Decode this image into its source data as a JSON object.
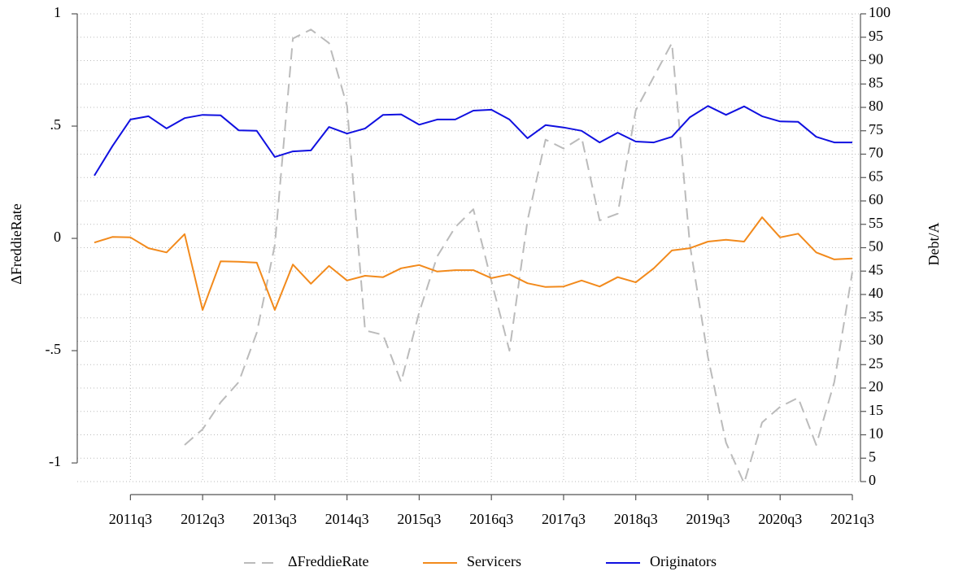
{
  "chart_data": {
    "type": "line",
    "categories": [
      null,
      null,
      "2011q3",
      null,
      null,
      null,
      "2012q3",
      null,
      null,
      null,
      "2013q3",
      null,
      null,
      null,
      "2014q3",
      null,
      null,
      null,
      "2015q3",
      null,
      null,
      null,
      "2016q3",
      null,
      null,
      null,
      "2017q3",
      null,
      null,
      null,
      "2018q3",
      null,
      null,
      null,
      "2019q3",
      null,
      null,
      null,
      "2020q3",
      null,
      null,
      null,
      "2021q3"
    ],
    "y_label": "ΔFreddieRate",
    "y2_label": "Debt/A",
    "ylim": [
      -1.083,
      1
    ],
    "yticks": [
      -1,
      {
        "value": -0.5,
        "label": "-.5"
      },
      0,
      {
        "value": 0.5,
        "label": ".5"
      },
      1
    ],
    "y2lim": [
      0,
      100
    ],
    "y2ticks": [
      0,
      5,
      10,
      15,
      20,
      25,
      30,
      35,
      40,
      45,
      50,
      55,
      60,
      65,
      70,
      75,
      80,
      85,
      90,
      95,
      100
    ],
    "grid": true,
    "legend": "bottom",
    "series": [
      {
        "name": "ΔFreddieRate",
        "color": "#bbbbbb",
        "dashed": true,
        "values": [
          null,
          null,
          null,
          null,
          null,
          -0.92,
          -0.85,
          -0.73,
          -0.64,
          -0.42,
          -0.03,
          0.89,
          0.93,
          0.87,
          0.59,
          -0.41,
          -0.43,
          -0.64,
          -0.33,
          -0.08,
          0.05,
          0.13,
          -0.19,
          -0.5,
          0.08,
          0.44,
          0.4,
          0.45,
          0.08,
          0.11,
          0.57,
          0.72,
          0.87,
          -0.03,
          -0.53,
          -0.91,
          -1.09,
          -0.82,
          -0.75,
          -0.71,
          -0.92,
          -0.64,
          -0.15
        ]
      },
      {
        "name": "Servicers",
        "color": "#f28a1c",
        "axis": "y2",
        "values": [
          51.1,
          52.3,
          52.2,
          49.9,
          49.0,
          52.9,
          36.7,
          47.1,
          47.0,
          46.8,
          36.7,
          46.4,
          42.3,
          46.1,
          43.0,
          44.0,
          43.7,
          45.6,
          46.3,
          44.9,
          45.2,
          45.2,
          43.5,
          44.3,
          42.4,
          41.6,
          41.7,
          43.0,
          41.7,
          43.7,
          42.6,
          45.6,
          49.4,
          49.9,
          51.3,
          51.7,
          51.3,
          56.5,
          52.2,
          53.0,
          49.0,
          47.5,
          47.7
        ]
      },
      {
        "name": "Originators",
        "color": "#1010e0",
        "axis": "y2",
        "values": [
          65.4,
          71.7,
          77.4,
          78.1,
          75.5,
          77.7,
          78.4,
          78.3,
          75.1,
          75.0,
          69.4,
          70.6,
          70.8,
          75.8,
          74.4,
          75.5,
          78.4,
          78.5,
          76.3,
          77.4,
          77.4,
          79.3,
          79.5,
          77.4,
          73.4,
          76.2,
          75.7,
          75.0,
          72.5,
          74.6,
          72.7,
          72.5,
          73.7,
          77.9,
          80.3,
          78.4,
          80.2,
          78.1,
          77.0,
          76.9,
          73.7,
          72.5,
          72.5
        ]
      }
    ]
  }
}
